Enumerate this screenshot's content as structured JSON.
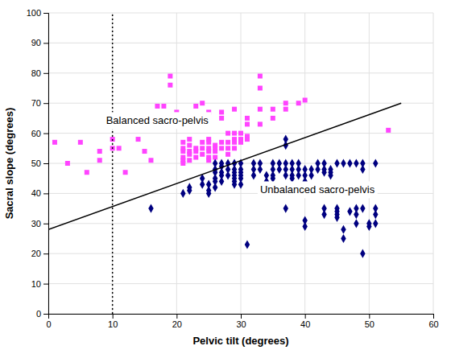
{
  "chart_data": {
    "type": "scatter",
    "xlabel": "Pelvic tilt (degrees)",
    "ylabel": "Sacral slope (degrees)",
    "xlim": [
      0,
      60
    ],
    "ylim": [
      0,
      100
    ],
    "xticks": [
      0,
      10,
      20,
      30,
      40,
      50,
      60
    ],
    "yticks": [
      0,
      10,
      20,
      30,
      40,
      50,
      60,
      70,
      80,
      90,
      100
    ],
    "grid": true,
    "series": [
      {
        "type": "scatter",
        "color": "#ff44ff",
        "marker": "square",
        "x": [
          1,
          3,
          5,
          6,
          8,
          8,
          10,
          10,
          11,
          12,
          14,
          15,
          16,
          17,
          18,
          18,
          19,
          19,
          20,
          20,
          21,
          21,
          21,
          21,
          21,
          21,
          22,
          22,
          22,
          22,
          22,
          23,
          23,
          23,
          23,
          24,
          24,
          24,
          24,
          24,
          25,
          25,
          25,
          25,
          25,
          25,
          25,
          26,
          26,
          26,
          26,
          27,
          27,
          27,
          27,
          28,
          28,
          28,
          28,
          29,
          29,
          29,
          29,
          29,
          30,
          30,
          30,
          31,
          31,
          31,
          31,
          33,
          33,
          33,
          33,
          35,
          35,
          37,
          37,
          39,
          40,
          53
        ],
        "values": [
          57,
          50,
          57,
          47,
          54,
          51,
          58,
          55,
          55,
          47,
          58,
          54,
          51,
          69,
          69,
          66,
          79,
          76,
          67,
          65,
          57,
          55,
          54,
          52,
          51,
          50,
          58,
          56,
          54,
          53,
          51,
          69,
          55,
          54,
          52,
          70,
          65,
          57,
          55,
          53,
          67,
          58,
          57,
          55,
          54,
          52,
          51,
          56,
          55,
          54,
          52,
          67,
          65,
          57,
          55,
          60,
          57,
          55,
          53,
          68,
          60,
          58,
          57,
          55,
          60,
          58,
          57,
          65,
          63,
          59,
          58,
          79,
          75,
          68,
          63,
          68,
          65,
          70,
          68,
          70,
          71,
          61
        ]
      },
      {
        "type": "scatter",
        "color": "#000080",
        "marker": "diamond",
        "x": [
          16,
          21,
          22,
          22,
          24,
          24,
          25,
          25,
          25,
          26,
          26,
          26,
          26,
          26,
          26,
          27,
          27,
          27,
          27,
          27,
          28,
          28,
          28,
          29,
          29,
          29,
          29,
          29,
          29,
          29,
          30,
          30,
          30,
          30,
          30,
          30,
          31,
          32,
          32,
          32,
          33,
          33,
          34,
          34,
          35,
          35,
          35,
          35,
          36,
          36,
          37,
          37,
          37,
          37,
          37,
          37,
          38,
          38,
          38,
          38,
          39,
          39,
          39,
          40,
          40,
          40,
          40,
          40,
          41,
          41,
          42,
          42,
          43,
          43,
          43,
          43,
          43,
          44,
          44,
          44,
          45,
          45,
          45,
          45,
          45,
          46,
          46,
          46,
          47,
          47,
          48,
          48,
          48,
          48,
          49,
          49,
          49,
          49,
          50,
          50,
          51,
          51,
          51,
          51
        ],
        "values": [
          35,
          40,
          42,
          41,
          45,
          43,
          43,
          41,
          40,
          50,
          48,
          47,
          45,
          44,
          42,
          50,
          49,
          47,
          46,
          44,
          50,
          48,
          46,
          50,
          48,
          47,
          46,
          45,
          44,
          43,
          50,
          48,
          47,
          46,
          45,
          43,
          23,
          50,
          48,
          46,
          50,
          48,
          46,
          44,
          50,
          48,
          46,
          45,
          50,
          48,
          58,
          56,
          50,
          48,
          46,
          35,
          50,
          48,
          46,
          45,
          50,
          48,
          46,
          48,
          46,
          44,
          31,
          29,
          48,
          46,
          50,
          48,
          50,
          48,
          47,
          35,
          33,
          48,
          47,
          46,
          50,
          35,
          34,
          33,
          32,
          50,
          28,
          25,
          50,
          34,
          50,
          35,
          33,
          30,
          50,
          48,
          35,
          20,
          30,
          29,
          50,
          35,
          33,
          30
        ]
      },
      {
        "type": "line",
        "color": "#000000",
        "line_style": "solid",
        "x": [
          0,
          55
        ],
        "values": [
          28,
          70
        ]
      },
      {
        "type": "vline",
        "color": "#000000",
        "line_style": "dotted",
        "x": [
          10
        ]
      }
    ],
    "annotations": [
      {
        "text": "Balanced sacro-pelvis",
        "x": 9,
        "y": 63
      },
      {
        "text": "Unbalanced sacro-pelvis",
        "x": 33,
        "y": 40
      }
    ]
  }
}
